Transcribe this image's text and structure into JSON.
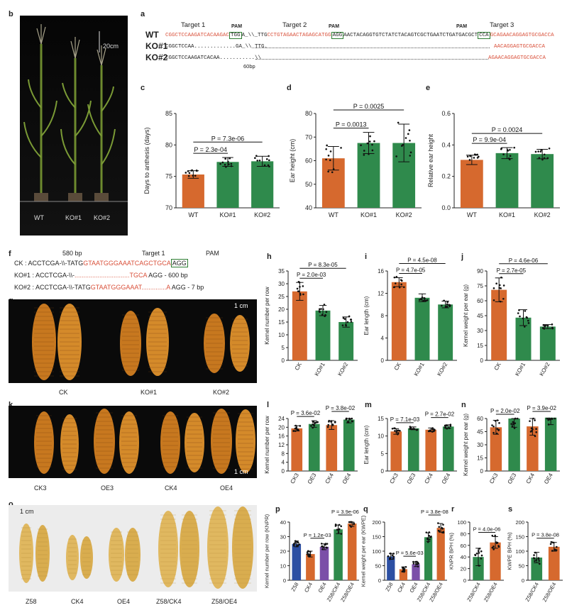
{
  "colors": {
    "orange": "#d6692e",
    "green": "#2f8a4c",
    "red_seq": "#d9503a",
    "blue": "#2c4fa3",
    "purple": "#7b4fa8"
  },
  "panel_b": {
    "label": "b",
    "scale": "20cm",
    "genotypes": [
      "WT",
      "KO#1",
      "KO#2"
    ]
  },
  "panel_a": {
    "label": "a",
    "targets": [
      "Target 1",
      "Target 2",
      "Target 3"
    ],
    "pam": "PAM",
    "rows": [
      {
        "name": "WT",
        "seq1": "CGGCTCCAAGATCACAAGAC",
        "pam1": "TGG",
        "mid": "A_\\\\_TTG",
        "seq2": "CCTGTAGAACTAGAGCATGG",
        "pam2": "AGG",
        "seq3": "AACTACAGGTGTCTATCTACAGTCGCTGAATCTGATGACGCT",
        "pam3": "CCA",
        "seq4": "GCAGAACAGGAGTGCGACCA"
      },
      {
        "name": "KO#1",
        "left": "CGGCTCCAA.............GA_\\\\_TTG.",
        "right": "AACAGGAGTGCGACCA"
      },
      {
        "name": "KO#2",
        "left": "CGGCTCCAAGATCACAA...........\\\\",
        "note": "60bp",
        "right": "AGAACAGGAGTGCGACCA"
      }
    ]
  },
  "panel_c": {
    "label": "c",
    "ylabel": "Days to anthesis (days)",
    "p1": "P = 2.3e-04",
    "p2": "P = 7.3e-06"
  },
  "panel_d": {
    "label": "d",
    "ylabel": "Ear height (cm)",
    "p1": "P = 0.0013",
    "p2": "P = 0.0025"
  },
  "panel_e": {
    "label": "e",
    "ylabel": "Relative ear height",
    "p1": "P = 9.9e-04",
    "p2": "P = 0.0024"
  },
  "panel_f": {
    "label": "f",
    "bp": "580 bp",
    "target": "Target  1",
    "pam": "PAM",
    "rows": [
      {
        "name": "CK :",
        "prefix": "ACCTCGA-\\\\-TATG",
        "red": "GTAATGGGAAATCAGCTGCA",
        "box": "AGG",
        "suffix": ""
      },
      {
        "name": "KO#1 :",
        "prefix": "ACCTCGA-\\\\-",
        "red": "...............................TGCA",
        "box": "",
        "suffix": " AGG - 600 bp"
      },
      {
        "name": "KO#2 :",
        "prefix": "ACCTCGA-\\\\-TATG",
        "red": "GTAATGGGAAAT..............A",
        "box": "",
        "suffix": " AGG - 7 bp"
      }
    ]
  },
  "panel_g": {
    "label": "g",
    "scale": "1 cm",
    "labels": [
      "CK",
      "KO#1",
      "KO#2"
    ]
  },
  "panel_h": {
    "label": "h",
    "ylabel": "Kernel number per row",
    "p1": "P = 2.0e-03",
    "p2": "P = 8.3e-05"
  },
  "panel_i": {
    "label": "i",
    "ylabel": "Ear length (cm)",
    "p1": "P = 4.7e-05",
    "p2": "P = 4.5e-08"
  },
  "panel_j": {
    "label": "j",
    "ylabel": "Kernel weight per ear (g)",
    "p1": "P = 2.7e-05",
    "p2": "P = 4.6e-06"
  },
  "panel_k": {
    "label": "k",
    "scale": "1 cm",
    "labels": [
      "CK3",
      "OE3",
      "CK4",
      "OE4"
    ]
  },
  "panel_l": {
    "label": "l",
    "ylabel": "Kernel number per row",
    "p1": "P = 3.6e-02",
    "p2": "P = 3.8e-02"
  },
  "panel_m": {
    "label": "m",
    "ylabel": "Ear length (cm)",
    "p1": "P = 7.1e-03",
    "p2": "P = 2.7e-02"
  },
  "panel_n": {
    "label": "n",
    "ylabel": "Kernel weight per ear (g)",
    "p1": "P = 2.0e-02",
    "p2": "P = 3.9e-02"
  },
  "panel_o": {
    "label": "o",
    "scale": "1 cm",
    "labels": [
      "Z58",
      "CK4",
      "OE4",
      "Z58/CK4",
      "Z58/OE4"
    ]
  },
  "panel_p": {
    "label": "p",
    "ylabel": "Kernel number per row (KNPR)",
    "p1": "P = 1.2e-03",
    "p2": "P = 3.9e-06"
  },
  "panel_q": {
    "label": "q",
    "ylabel": "Kernel weight per ear (KWPE)",
    "p1": "P = 5.6e-03",
    "p2": "P = 3.8e-08"
  },
  "panel_r": {
    "label": "r",
    "ylabel": "KNPR BPH (%)",
    "p1": "P = 4.0e-06"
  },
  "panel_s": {
    "label": "s",
    "ylabel": "KWPE BPH (%)",
    "p1": "P = 3.8e-08"
  },
  "chart_data": [
    {
      "panel": "c",
      "type": "bar",
      "categories": [
        "WT",
        "KO#1",
        "KO#2"
      ],
      "values": [
        75.3,
        77.3,
        77.4
      ],
      "errors": [
        0.6,
        0.7,
        0.8
      ],
      "ylim": [
        70,
        85
      ],
      "yticks": [
        70,
        75,
        80,
        85
      ],
      "colors": [
        "orange",
        "green",
        "green"
      ]
    },
    {
      "panel": "d",
      "type": "bar",
      "categories": [
        "WT",
        "KO#1",
        "KO#2"
      ],
      "values": [
        61,
        67.5,
        67.5
      ],
      "errors": [
        5,
        4.5,
        8
      ],
      "ylim": [
        40,
        80
      ],
      "yticks": [
        40,
        50,
        60,
        70,
        80
      ],
      "colors": [
        "orange",
        "green",
        "green"
      ]
    },
    {
      "panel": "e",
      "type": "bar",
      "categories": [
        "WT",
        "KO#1",
        "KO#2"
      ],
      "values": [
        0.305,
        0.348,
        0.342
      ],
      "errors": [
        0.03,
        0.035,
        0.03
      ],
      "ylim": [
        0,
        0.6
      ],
      "yticks": [
        0,
        0.2,
        0.4,
        0.6
      ],
      "colors": [
        "orange",
        "green",
        "green"
      ]
    },
    {
      "panel": "h",
      "type": "bar",
      "categories": [
        "CK",
        "KO#1",
        "KO#2"
      ],
      "values": [
        27,
        19.5,
        15
      ],
      "errors": [
        3.5,
        2,
        2
      ],
      "ylim": [
        0,
        35
      ],
      "yticks": [
        0,
        5,
        10,
        15,
        20,
        25,
        30,
        35
      ],
      "colors": [
        "orange",
        "green",
        "green"
      ]
    },
    {
      "panel": "i",
      "type": "bar",
      "categories": [
        "CK",
        "KO#1",
        "KO#2"
      ],
      "values": [
        14,
        11.2,
        10
      ],
      "errors": [
        0.8,
        0.7,
        0.6
      ],
      "ylim": [
        0,
        16
      ],
      "yticks": [
        0,
        4,
        8,
        12,
        16
      ],
      "colors": [
        "orange",
        "green",
        "green"
      ]
    },
    {
      "panel": "j",
      "type": "bar",
      "categories": [
        "CK",
        "KO#1",
        "KO#2"
      ],
      "values": [
        71,
        43,
        34
      ],
      "errors": [
        12,
        8,
        2
      ],
      "ylim": [
        0,
        90
      ],
      "yticks": [
        0,
        15,
        30,
        45,
        60,
        75,
        90
      ],
      "colors": [
        "orange",
        "green",
        "green"
      ]
    },
    {
      "panel": "l",
      "type": "bar",
      "categories": [
        "CK3",
        "OE3",
        "CK4",
        "OE4"
      ],
      "values": [
        19.5,
        21.5,
        21,
        23.5
      ],
      "errors": [
        1.2,
        1.5,
        2,
        1.5
      ],
      "ylim": [
        0,
        24
      ],
      "yticks": [
        0,
        4,
        8,
        12,
        16,
        20,
        24
      ],
      "colors": [
        "orange",
        "green",
        "orange",
        "green"
      ]
    },
    {
      "panel": "m",
      "type": "bar",
      "categories": [
        "CK3",
        "OE3",
        "CK4",
        "OE4"
      ],
      "values": [
        11.3,
        12.2,
        11.8,
        12.7
      ],
      "errors": [
        0.8,
        0.4,
        0.5,
        0.5
      ],
      "ylim": [
        0,
        15
      ],
      "yticks": [
        0,
        5,
        10,
        15
      ],
      "colors": [
        "orange",
        "green",
        "orange",
        "green"
      ]
    },
    {
      "panel": "n",
      "type": "bar",
      "categories": [
        "CK3",
        "OE3",
        "CK4",
        "OE4"
      ],
      "values": [
        50,
        60,
        51,
        61
      ],
      "errors": [
        8,
        10,
        10,
        8
      ],
      "ylim": [
        0,
        60
      ],
      "yticks": [
        0,
        15,
        30,
        45,
        60
      ],
      "colors": [
        "orange",
        "green",
        "orange",
        "green"
      ]
    },
    {
      "panel": "p",
      "type": "bar",
      "categories": [
        "Z58",
        "CK4",
        "OE4",
        "Z58/CK4",
        "Z58/OE4"
      ],
      "values": [
        25,
        18,
        23,
        35,
        39
      ],
      "errors": [
        2,
        2,
        2,
        3,
        2
      ],
      "ylim": [
        0,
        40
      ],
      "yticks": [
        0,
        10,
        20,
        30,
        40
      ],
      "colors": [
        "blue",
        "orange",
        "purple",
        "green",
        "orange"
      ]
    },
    {
      "panel": "q",
      "type": "bar",
      "categories": [
        "Z58",
        "CK4",
        "OE4",
        "Z58/CK4",
        "Z58/OE4"
      ],
      "values": [
        82,
        38,
        55,
        148,
        180
      ],
      "errors": [
        10,
        8,
        8,
        15,
        15
      ],
      "ylim": [
        0,
        200
      ],
      "yticks": [
        0,
        50,
        100,
        150,
        200
      ],
      "colors": [
        "blue",
        "orange",
        "purple",
        "green",
        "orange"
      ]
    },
    {
      "panel": "r",
      "type": "bar",
      "categories": [
        "Z58/CK4",
        "Z58/OE4"
      ],
      "values": [
        40,
        65
      ],
      "errors": [
        15,
        10
      ],
      "ylim": [
        0,
        100
      ],
      "yticks": [
        0,
        20,
        40,
        60,
        80,
        100
      ],
      "colors": [
        "green",
        "orange"
      ]
    },
    {
      "panel": "s",
      "type": "bar",
      "categories": [
        "Z58/CK4",
        "Z58/OE4"
      ],
      "values": [
        78,
        115
      ],
      "errors": [
        18,
        15
      ],
      "ylim": [
        0,
        200
      ],
      "yticks": [
        0,
        50,
        100,
        150,
        200
      ],
      "colors": [
        "green",
        "orange"
      ]
    }
  ]
}
